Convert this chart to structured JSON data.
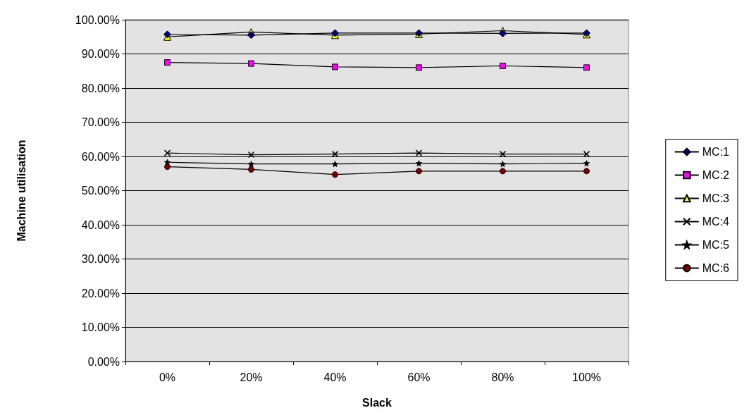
{
  "chart_data": {
    "type": "line",
    "xlabel": "Slack",
    "ylabel": "Machine utilisation",
    "categories": [
      "0%",
      "20%",
      "40%",
      "60%",
      "80%",
      "100%"
    ],
    "ylim": [
      0,
      100
    ],
    "yticks": [
      {
        "value": 0,
        "label": "0.00%"
      },
      {
        "value": 10,
        "label": "10.00%"
      },
      {
        "value": 20,
        "label": "20.00%"
      },
      {
        "value": 30,
        "label": "30.00%"
      },
      {
        "value": 40,
        "label": "40.00%"
      },
      {
        "value": 50,
        "label": "50.00%"
      },
      {
        "value": 60,
        "label": "60.00%"
      },
      {
        "value": 70,
        "label": "70.00%"
      },
      {
        "value": 80,
        "label": "80.00%"
      },
      {
        "value": 90,
        "label": "90.00%"
      },
      {
        "value": 100,
        "label": "100.00%"
      }
    ],
    "grid": "y",
    "legend": "right",
    "line_style": "solid",
    "series": [
      {
        "name": "MC:1",
        "color": "#000080",
        "marker": "diamond",
        "values": [
          95.7,
          95.5,
          96.1,
          96.1,
          96.0,
          96.1
        ]
      },
      {
        "name": "MC:2",
        "color": "#ff00ff",
        "marker": "square",
        "values": [
          87.5,
          87.2,
          86.2,
          86.0,
          86.5,
          86.0
        ]
      },
      {
        "name": "MC:3",
        "color": "#ffff00",
        "marker": "triangle",
        "values": [
          95.0,
          96.4,
          95.5,
          95.8,
          96.8,
          95.7
        ]
      },
      {
        "name": "MC:4",
        "color": "#000000",
        "marker": "cross",
        "values": [
          61.0,
          60.5,
          60.7,
          61.0,
          60.7,
          60.7
        ]
      },
      {
        "name": "MC:5",
        "color": "#000000",
        "marker": "star",
        "values": [
          58.3,
          57.8,
          57.8,
          58.0,
          57.8,
          58.0
        ]
      },
      {
        "name": "MC:6",
        "color": "#800000",
        "marker": "circle",
        "values": [
          57.0,
          56.2,
          54.7,
          55.7,
          55.7,
          55.7
        ]
      }
    ]
  }
}
